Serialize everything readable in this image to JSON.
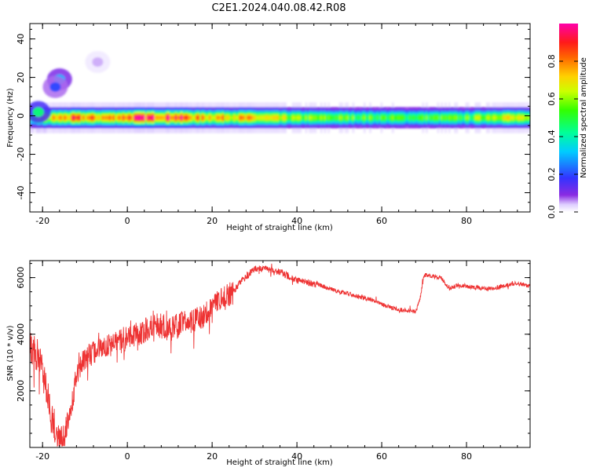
{
  "title": "C2E1.2024.040.08.42.R08",
  "colors": {
    "snr_line": "#ee3333",
    "axes": "#000000",
    "background": "#ffffff"
  },
  "chart_data": [
    {
      "type": "heatmap",
      "xlabel": "Height of straight line (km)",
      "ylabel": "Frequency (Hz)",
      "xlim": [
        -23,
        95
      ],
      "ylim": [
        -50,
        48
      ],
      "xticks": [
        -20,
        0,
        20,
        40,
        60,
        80
      ],
      "yticks": [
        -40,
        -20,
        0,
        20,
        40
      ],
      "colorbar": {
        "label": "Normalized spectral amplitude",
        "range": [
          0,
          1
        ],
        "ticks": [
          "0.0",
          "0.2",
          "0.4",
          "0.6",
          "0.8"
        ],
        "colormap": "rainbow (white-violet-blue-cyan-green-yellow-red)"
      },
      "ridge": {
        "frequency_hz": -1,
        "x_range": [
          -23,
          95
        ],
        "amplitude_profile": [
          {
            "x": -22,
            "a": 0.55
          },
          {
            "x": -18,
            "a": 0.75
          },
          {
            "x": -13,
            "a": 0.85
          },
          {
            "x": -6,
            "a": 0.8
          },
          {
            "x": 2.5,
            "a": 0.95
          },
          {
            "x": 11,
            "a": 0.95
          },
          {
            "x": 16,
            "a": 0.8
          },
          {
            "x": 25,
            "a": 0.8
          },
          {
            "x": 40,
            "a": 0.6
          },
          {
            "x": 60,
            "a": 0.55
          },
          {
            "x": 80,
            "a": 0.55
          },
          {
            "x": 88,
            "a": 0.75
          },
          {
            "x": 94,
            "a": 0.6
          }
        ]
      },
      "spurious_features": [
        {
          "x": -16,
          "freq_hz": 19,
          "amplitude": 0.3
        },
        {
          "x": -17,
          "freq_hz": 15,
          "amplitude": 0.2
        },
        {
          "x": -7,
          "freq_hz": 28,
          "amplitude": 0.05
        },
        {
          "x": -21,
          "freq_hz": 2,
          "amplitude": 0.45
        }
      ]
    },
    {
      "type": "line",
      "xlabel": "Height of straight line (km)",
      "ylabel": "SNR (10 * v/v)",
      "xlim": [
        -23,
        95
      ],
      "ylim": [
        0,
        6600
      ],
      "xticks": [
        -20,
        0,
        20,
        40,
        60,
        80
      ],
      "yticks": [
        2000,
        4000,
        6000
      ],
      "series": [
        {
          "x": [
            -23,
            -21,
            -19,
            -18,
            -17,
            -16,
            -15,
            -14,
            -12,
            -10,
            -8,
            -5,
            -2,
            0,
            3,
            6,
            10,
            14,
            18,
            20,
            22,
            25,
            27,
            30,
            33,
            36,
            38,
            40,
            45,
            50,
            52,
            55,
            58,
            60,
            62,
            65,
            68,
            69,
            70,
            74,
            76,
            78,
            82,
            86,
            90,
            92,
            95
          ],
          "y": [
            3500,
            3200,
            2000,
            1000,
            700,
            300,
            200,
            800,
            2500,
            3200,
            3300,
            3600,
            3700,
            3900,
            4000,
            4400,
            4200,
            4400,
            4600,
            4900,
            5200,
            5500,
            5900,
            6300,
            6300,
            6200,
            6050,
            5900,
            5750,
            5500,
            5450,
            5300,
            5200,
            5050,
            4950,
            4850,
            4800,
            5200,
            6100,
            6000,
            5600,
            5750,
            5650,
            5600,
            5750,
            5800,
            5700
          ]
        }
      ]
    }
  ]
}
